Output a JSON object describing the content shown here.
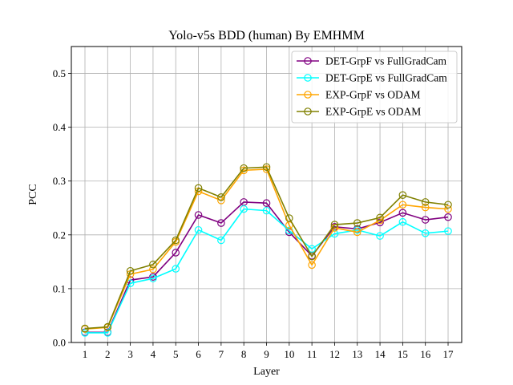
{
  "chart_data": {
    "type": "line",
    "title": "Yolo-v5s BDD (human) By EMHMM",
    "xlabel": "Layer",
    "ylabel": "PCC",
    "x": [
      1,
      2,
      3,
      4,
      5,
      6,
      7,
      8,
      9,
      10,
      11,
      12,
      13,
      14,
      15,
      16,
      17
    ],
    "xlim": [
      0.4,
      17.6
    ],
    "ylim": [
      0.0,
      0.55
    ],
    "yticks": [
      0.0,
      0.1,
      0.2,
      0.3,
      0.4,
      0.5
    ],
    "ytick_labels": [
      "0.0",
      "0.1",
      "0.2",
      "0.3",
      "0.4",
      "0.5"
    ],
    "xtick_labels": [
      "1",
      "2",
      "3",
      "4",
      "5",
      "6",
      "7",
      "8",
      "9",
      "10",
      "11",
      "12",
      "13",
      "14",
      "15",
      "16",
      "17"
    ],
    "grid": true,
    "legend_position": "top-right",
    "marker": "hollow-circle",
    "series": [
      {
        "name": "DET-GrpF vs FullGradCam",
        "color": "#800080",
        "values": [
          0.019,
          0.019,
          0.116,
          0.122,
          0.167,
          0.237,
          0.222,
          0.261,
          0.259,
          0.205,
          0.161,
          0.215,
          0.211,
          0.223,
          0.241,
          0.228,
          0.233
        ]
      },
      {
        "name": "DET-GrpE vs FullGradCam",
        "color": "#00FFFF",
        "values": [
          0.018,
          0.018,
          0.11,
          0.119,
          0.137,
          0.209,
          0.19,
          0.248,
          0.245,
          0.208,
          0.174,
          0.202,
          0.209,
          0.198,
          0.224,
          0.203,
          0.207
        ]
      },
      {
        "name": "EXP-GrpF vs ODAM",
        "color": "#FFA500",
        "values": [
          0.025,
          0.028,
          0.127,
          0.136,
          0.187,
          0.281,
          0.264,
          0.32,
          0.322,
          0.218,
          0.144,
          0.213,
          0.205,
          0.227,
          0.256,
          0.251,
          0.248
        ]
      },
      {
        "name": "EXP-GrpE vs ODAM",
        "color": "#808000",
        "values": [
          0.026,
          0.029,
          0.133,
          0.145,
          0.19,
          0.287,
          0.27,
          0.324,
          0.326,
          0.231,
          0.16,
          0.219,
          0.222,
          0.232,
          0.274,
          0.261,
          0.256
        ]
      }
    ]
  }
}
